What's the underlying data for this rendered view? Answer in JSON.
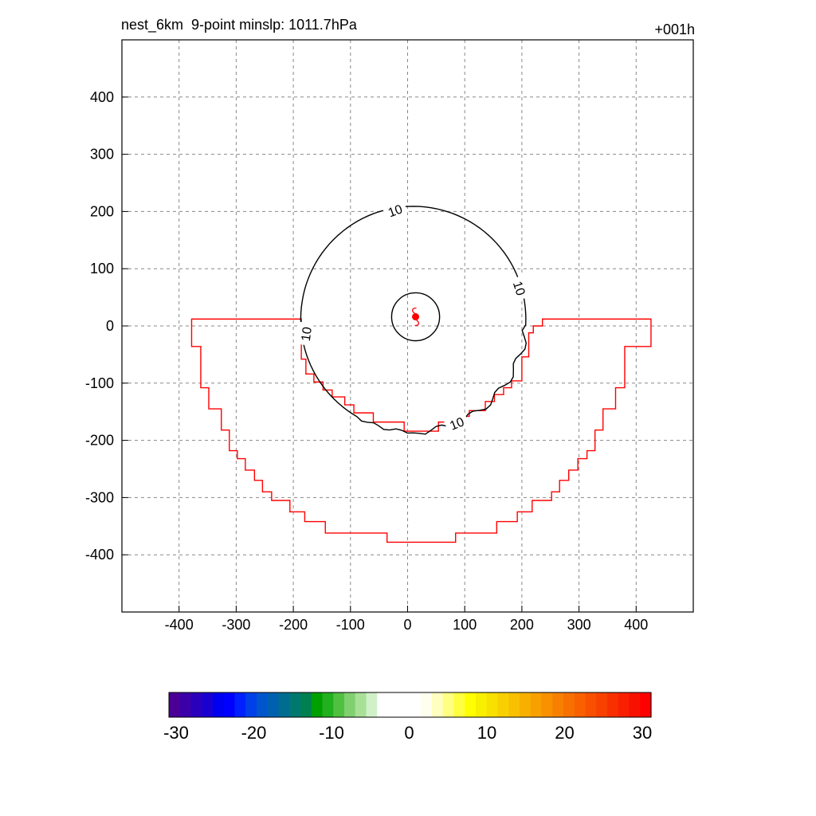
{
  "header": {
    "title": "nest_6km  9-point minslp: 1011.7hPa",
    "time_label": "+001h"
  },
  "chart_data": {
    "type": "contour",
    "xlim": [
      -500,
      500
    ],
    "ylim": [
      -500,
      500
    ],
    "xticks": [
      -400,
      -300,
      -200,
      -100,
      0,
      100,
      200,
      300,
      400
    ],
    "yticks": [
      -400,
      -300,
      -200,
      -100,
      0,
      100,
      200,
      300,
      400
    ],
    "grid": true,
    "contours": [
      {
        "level": 10,
        "label": "10",
        "color": "#000000"
      }
    ],
    "storm_center": {
      "x": 14,
      "y": 16,
      "symbol": "tropical-cyclone-icon",
      "color": "#ff0000"
    },
    "boundary_color": "#ff0000",
    "colorbar": {
      "ticks": [
        -30,
        -20,
        -10,
        0,
        10,
        20,
        30
      ],
      "colors": [
        "#4a0095",
        "#3b00a8",
        "#2a00bc",
        "#1a00d0",
        "#0000f0",
        "#0000ff",
        "#0020ff",
        "#0040e8",
        "#0055cc",
        "#0060b0",
        "#006c90",
        "#007870",
        "#008050",
        "#00a000",
        "#20b020",
        "#50c040",
        "#80d070",
        "#a8e098",
        "#d0f0c8",
        "#ffffff",
        "#ffffff",
        "#ffffff",
        "#ffffff",
        "#fffff0",
        "#ffffc0",
        "#ffff80",
        "#ffff40",
        "#ffff00",
        "#f8f000",
        "#f8e000",
        "#f8d000",
        "#f8c000",
        "#f8b000",
        "#f8a000",
        "#f89000",
        "#f88000",
        "#f87000",
        "#f86000",
        "#f85000",
        "#f84000",
        "#f83000",
        "#f82000",
        "#f81000",
        "#ff0000"
      ]
    }
  }
}
